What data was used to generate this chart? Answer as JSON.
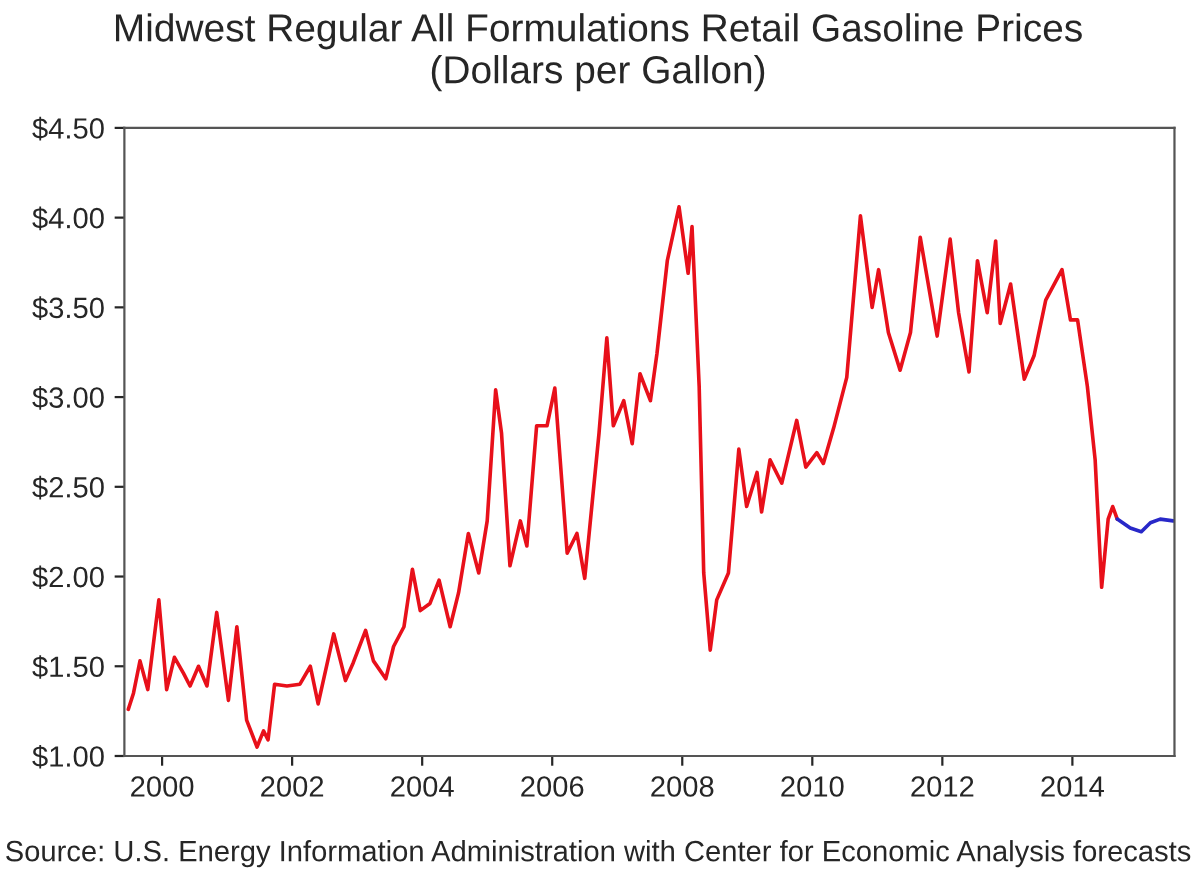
{
  "chart_data": {
    "type": "line",
    "title": "Midwest Regular All Formulations Retail Gasoline Prices\n(Dollars per Gallon)",
    "annotations": [
      "Source: U.S. Energy Information Administration with Center for Economic Analysis forecasts"
    ],
    "series": [
      {
        "color": "#e8101a",
        "x": [
          1999.48,
          1999.56,
          1999.66,
          1999.78,
          1999.95,
          2000.07,
          2000.19,
          2000.33,
          2000.43,
          2000.56,
          2000.69,
          2000.84,
          2001.02,
          2001.15,
          2001.3,
          2001.46,
          2001.56,
          2001.63,
          2001.73,
          2001.92,
          2002.12,
          2002.28,
          2002.4,
          2002.64,
          2002.82,
          2002.94,
          2003.13,
          2003.25,
          2003.44,
          2003.56,
          2003.72,
          2003.85,
          2003.97,
          2004.12,
          2004.26,
          2004.43,
          2004.56,
          2004.71,
          2004.87,
          2005.0,
          2005.13,
          2005.22,
          2005.35,
          2005.51,
          2005.61,
          2005.76,
          2005.92,
          2006.04,
          2006.23,
          2006.38,
          2006.5,
          2006.72,
          2006.84,
          2006.94,
          2007.1,
          2007.23,
          2007.35,
          2007.51,
          2007.61,
          2007.77,
          2007.95,
          2008.09,
          2008.15,
          2008.26,
          2008.33,
          2008.43,
          2008.53,
          2008.71,
          2008.87,
          2008.99,
          2009.15,
          2009.22,
          2009.35,
          2009.53,
          2009.76,
          2009.9,
          2010.07,
          2010.17,
          2010.33,
          2010.53,
          2010.74,
          2010.92,
          2011.02,
          2011.17,
          2011.35,
          2011.51,
          2011.66,
          2011.92,
          2012.12,
          2012.25,
          2012.41,
          2012.54,
          2012.69,
          2012.82,
          2012.89,
          2013.05,
          2013.26,
          2013.41,
          2013.59,
          2013.84,
          2013.97,
          2014.08,
          2014.23,
          2014.35,
          2014.45,
          2014.55,
          2014.62,
          2014.69
        ],
        "values": [
          1.26,
          1.35,
          1.53,
          1.37,
          1.87,
          1.37,
          1.55,
          1.46,
          1.39,
          1.5,
          1.39,
          1.8,
          1.31,
          1.72,
          1.2,
          1.05,
          1.14,
          1.09,
          1.4,
          1.39,
          1.4,
          1.5,
          1.29,
          1.68,
          1.42,
          1.52,
          1.7,
          1.53,
          1.43,
          1.61,
          1.72,
          2.04,
          1.81,
          1.85,
          1.98,
          1.72,
          1.91,
          2.24,
          2.02,
          2.31,
          3.04,
          2.8,
          2.06,
          2.31,
          2.17,
          2.84,
          2.84,
          3.05,
          2.13,
          2.24,
          1.99,
          2.8,
          3.33,
          2.84,
          2.98,
          2.74,
          3.13,
          2.98,
          3.24,
          3.76,
          4.06,
          3.69,
          3.95,
          3.06,
          2.02,
          1.59,
          1.87,
          2.02,
          2.71,
          2.39,
          2.58,
          2.36,
          2.65,
          2.52,
          2.87,
          2.61,
          2.69,
          2.63,
          2.83,
          3.11,
          4.01,
          3.5,
          3.71,
          3.36,
          3.15,
          3.36,
          3.89,
          3.34,
          3.88,
          3.47,
          3.14,
          3.76,
          3.47,
          3.87,
          3.41,
          3.63,
          3.1,
          3.23,
          3.54,
          3.71,
          3.43,
          3.43,
          3.06,
          2.65,
          1.94,
          2.32,
          2.39,
          2.32
        ]
      },
      {
        "color": "#2828c8",
        "x": [
          2014.69,
          2014.89,
          2015.06,
          2015.2,
          2015.35,
          2015.55
        ],
        "values": [
          2.32,
          2.27,
          2.25,
          2.3,
          2.32,
          2.31
        ]
      }
    ],
    "xlim": [
      1999.42,
      2015.57
    ],
    "xticks": [
      2000,
      2002,
      2004,
      2006,
      2008,
      2010,
      2012,
      2014
    ],
    "ylim": [
      1.0,
      4.5
    ],
    "yticks": [
      {
        "value": 1.0,
        "label": "$1.00"
      },
      {
        "value": 1.5,
        "label": "$1.50"
      },
      {
        "value": 2.0,
        "label": "$2.00"
      },
      {
        "value": 2.5,
        "label": "$2.50"
      },
      {
        "value": 3.0,
        "label": "$3.00"
      },
      {
        "value": 3.5,
        "label": "$3.50"
      },
      {
        "value": 4.0,
        "label": "$4.00"
      },
      {
        "value": 4.5,
        "label": "$4.50"
      }
    ],
    "grid": false,
    "legend": false
  }
}
